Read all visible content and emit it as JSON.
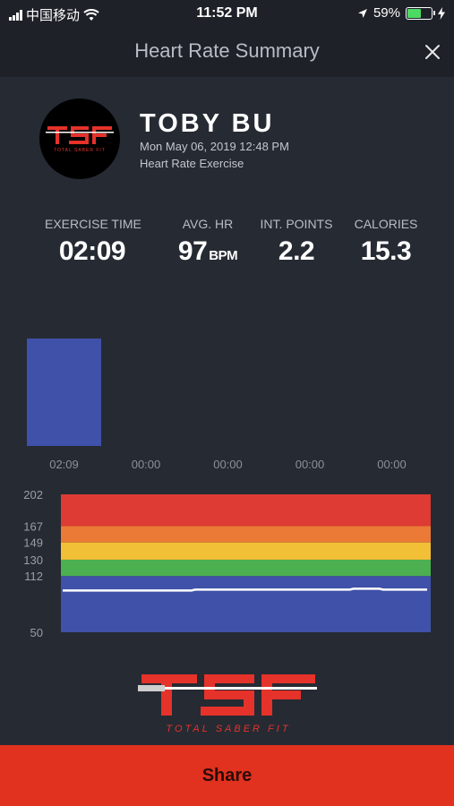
{
  "status_bar": {
    "carrier": "中国移动",
    "time": "11:52 PM",
    "battery": "59%",
    "battery_level": 0.59
  },
  "header": {
    "title": "Heart Rate Summary"
  },
  "profile": {
    "name": "TOBY BU",
    "date": "Mon May 06, 2019 12:48 PM",
    "exercise_type": "Heart Rate Exercise",
    "logo_text": "TOTAL SABER FIT"
  },
  "stats": [
    {
      "label": "EXERCISE TIME",
      "value": "02:09",
      "unit": ""
    },
    {
      "label": "AVG. HR",
      "value": "97",
      "unit": "BPM"
    },
    {
      "label": "INT. POINTS",
      "value": "2.2",
      "unit": ""
    },
    {
      "label": "CALORIES",
      "value": "15.3",
      "unit": ""
    }
  ],
  "chart_data": [
    {
      "type": "bar",
      "categories": [
        "02:09",
        "00:00",
        "00:00",
        "00:00",
        "00:00"
      ],
      "values": [
        1,
        0,
        0,
        0,
        0
      ],
      "bar_color": "#3f51a8"
    },
    {
      "type": "line",
      "y_ticks": [
        202,
        167,
        149,
        130,
        112,
        50
      ],
      "ylim": [
        50,
        202
      ],
      "zones": [
        {
          "from": 50,
          "to": 112,
          "color": "#3f51a8"
        },
        {
          "from": 112,
          "to": 130,
          "color": "#4caf50"
        },
        {
          "from": 130,
          "to": 149,
          "color": "#f2c037"
        },
        {
          "from": 149,
          "to": 167,
          "color": "#ea7a35"
        },
        {
          "from": 167,
          "to": 202,
          "color": "#dd3b33"
        }
      ],
      "series": [
        {
          "values": [
            96,
            96,
            96,
            96,
            96,
            96,
            96,
            96,
            96,
            96,
            96,
            96,
            96,
            96,
            96,
            96,
            96,
            96,
            96,
            96,
            96,
            96,
            96,
            96,
            96,
            96,
            96,
            96,
            96,
            96,
            96,
            96,
            96,
            96,
            96,
            96,
            97,
            97,
            97,
            97,
            97,
            97,
            97,
            97,
            97,
            97,
            97,
            97,
            97,
            97,
            97,
            97,
            97,
            97,
            97,
            97,
            97,
            97,
            97,
            97,
            97,
            97,
            97,
            97,
            97,
            97,
            97,
            97,
            97,
            97,
            97,
            97,
            97,
            97,
            97,
            97,
            97,
            97,
            97,
            98,
            98,
            98,
            98,
            98,
            98,
            98,
            98,
            97,
            97,
            97,
            97,
            97,
            97,
            97,
            97,
            97,
            97,
            97,
            97,
            97
          ]
        }
      ],
      "line_color": "#ffffff"
    }
  ],
  "share": {
    "label": "Share"
  },
  "colors": {
    "background": "#262a33",
    "header_bg": "#1e2128",
    "accent": "#e1311f"
  }
}
